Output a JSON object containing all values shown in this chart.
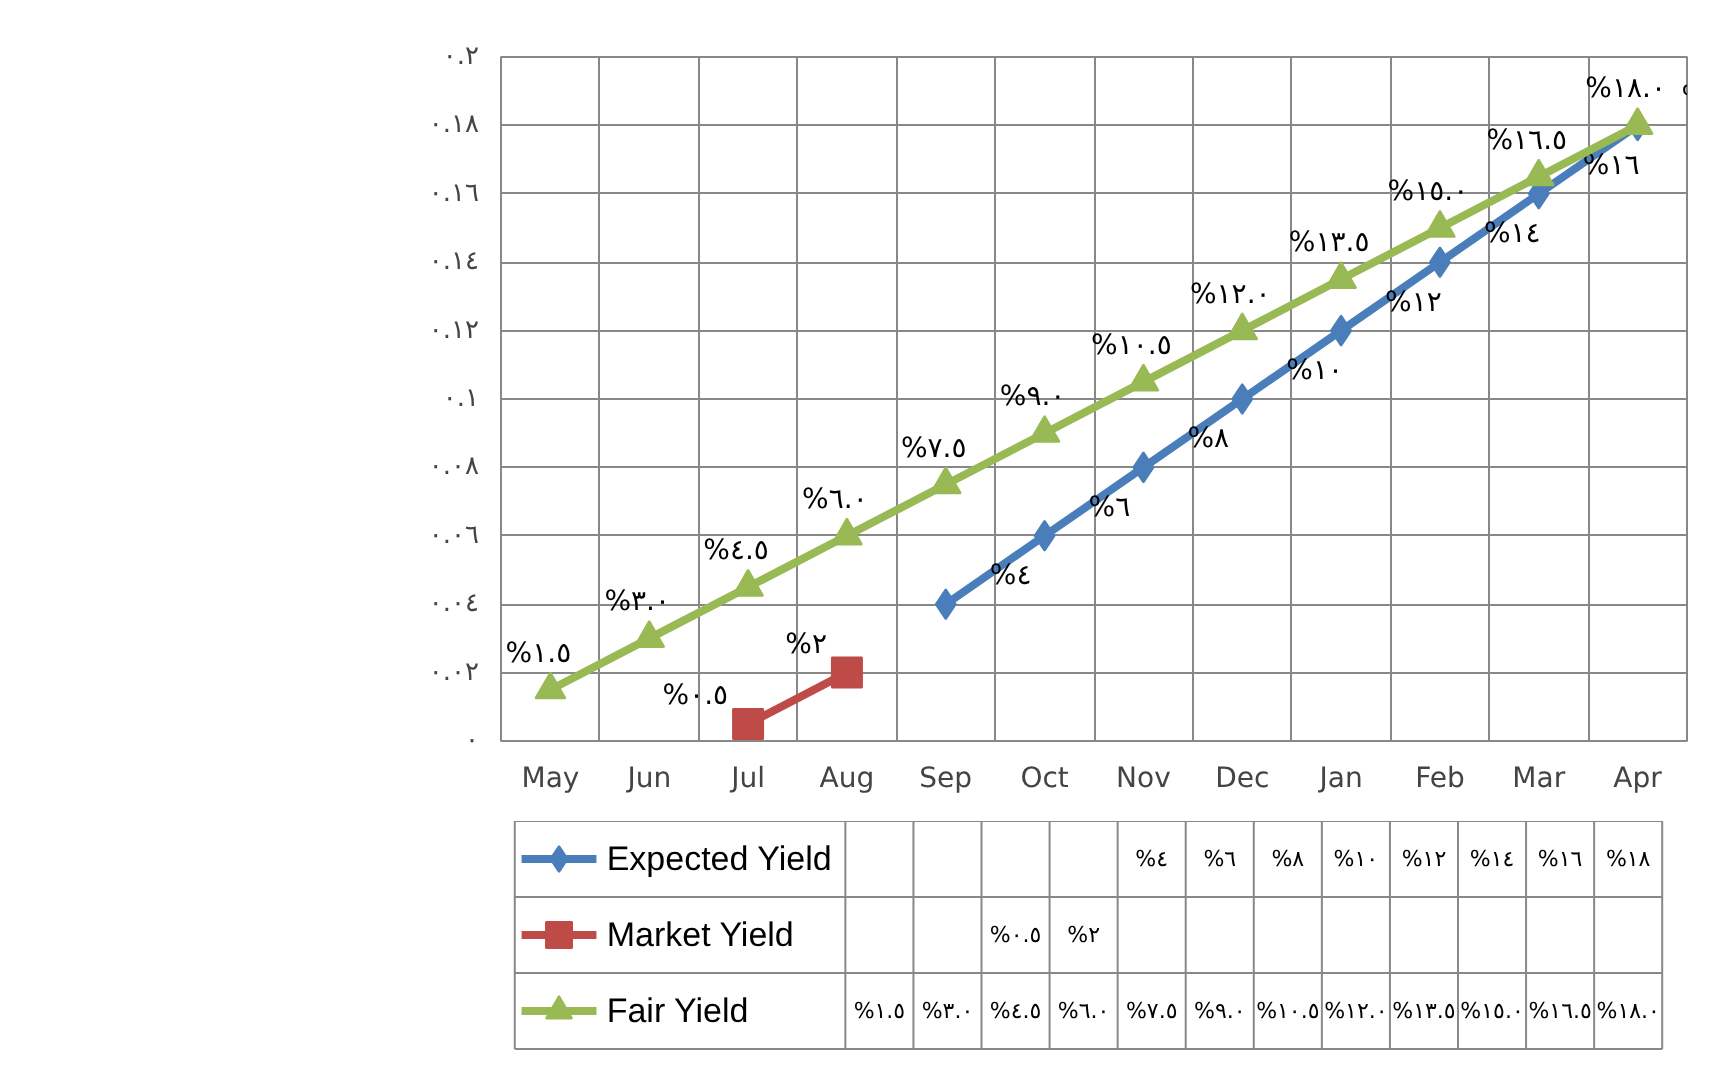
{
  "chart_data": {
    "type": "line",
    "categories": [
      "May",
      "Jun",
      "Jul",
      "Aug",
      "Sep",
      "Oct",
      "Nov",
      "Dec",
      "Jan",
      "Feb",
      "Mar",
      "Apr"
    ],
    "series": [
      {
        "name": "Expected Yield",
        "color": "#4a7ebb",
        "marker": "diamond",
        "values": [
          null,
          null,
          null,
          null,
          0.04,
          0.06,
          0.08,
          0.1,
          0.12,
          0.14,
          0.16,
          0.18
        ],
        "value_labels": [
          null,
          null,
          null,
          null,
          "%٤",
          "%٦",
          "%٨",
          "%١٠",
          "%١٢",
          "%١٤",
          "%١٦",
          "%١٨"
        ]
      },
      {
        "name": "Market Yield",
        "color": "#be4b48",
        "marker": "square",
        "values": [
          null,
          null,
          0.005,
          0.02,
          null,
          null,
          null,
          null,
          null,
          null,
          null,
          null
        ],
        "value_labels": [
          null,
          null,
          "%٠.٥",
          "%٢",
          null,
          null,
          null,
          null,
          null,
          null,
          null,
          null
        ]
      },
      {
        "name": "Fair Yield",
        "color": "#98b954",
        "marker": "triangle",
        "values": [
          0.015,
          0.03,
          0.045,
          0.06,
          0.075,
          0.09,
          0.105,
          0.12,
          0.135,
          0.15,
          0.165,
          0.18
        ],
        "value_labels": [
          "%١.٥",
          "%٣.٠",
          "%٤.٥",
          "%٦.٠",
          "%٧.٥",
          "%٩.٠",
          "%١٠.٥",
          "%١٢.٠",
          "%١٣.٥",
          "%١٥.٠",
          "%١٦.٥",
          "%١٨.٠"
        ]
      }
    ],
    "ylim": [
      0,
      0.2
    ],
    "yticks": [
      {
        "value": 0,
        "label": "٠"
      },
      {
        "value": 0.02,
        "label": "٠.٠٢"
      },
      {
        "value": 0.04,
        "label": "٠.٠٤"
      },
      {
        "value": 0.06,
        "label": "٠.٠٦"
      },
      {
        "value": 0.08,
        "label": "٠.٠٨"
      },
      {
        "value": 0.1,
        "label": "٠.١"
      },
      {
        "value": 0.12,
        "label": "٠.١٢"
      },
      {
        "value": 0.14,
        "label": "٠.١٤"
      },
      {
        "value": 0.16,
        "label": "٠.١٦"
      },
      {
        "value": 0.18,
        "label": "٠.١٨"
      },
      {
        "value": 0.2,
        "label": "٠.٢"
      }
    ],
    "grid": true,
    "legend": "bottom",
    "line_style": "solid"
  }
}
